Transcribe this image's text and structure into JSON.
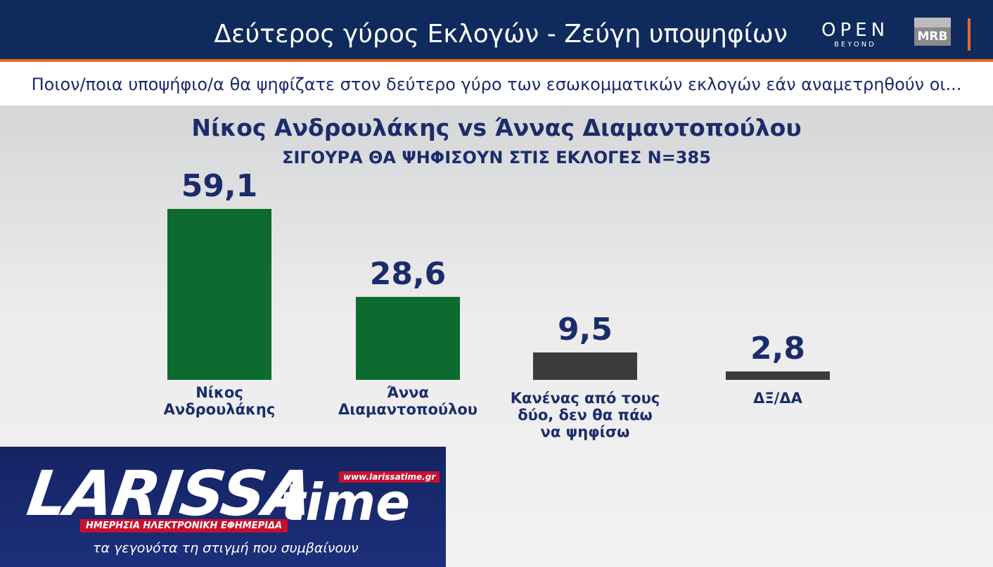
{
  "header": {
    "title": "Δεύτερος γύρος Εκλογών - Ζεύγη υποψηφίων",
    "logo_open": "OPEN",
    "logo_beyond": "BEYOND",
    "logo_mrb": "MRB"
  },
  "question": "Ποιον/ποια υποψήφιο/α θα ψηφίζατε στον δεύτερο γύρο των εσωκομματικών εκλογών εάν αναμετρηθούν οι...",
  "chart_data": {
    "type": "bar",
    "title": "Νίκος Ανδρουλάκης vs Άννας Διαμαντοπούλου",
    "subtitle": "ΣΙΓΟΥΡΑ ΘΑ ΨΗΦΙΣΟΥΝ ΣΤΙΣ ΕΚΛΟΓΕΣ N=385",
    "categories": [
      "Νίκος Ανδρουλάκης",
      "Άννα Διαμαντοπούλου",
      "Κανένας από τους δύο, δεν θα πάω να ψηφίσω",
      "ΔΞ/ΔΑ"
    ],
    "values": [
      59.1,
      28.6,
      9.5,
      2.8
    ],
    "value_labels": [
      "59,1",
      "28,6",
      "9,5",
      "2,8"
    ],
    "colors": [
      "#0d6b30",
      "#0d6b30",
      "#3b3b3b",
      "#3b3b3b"
    ]
  },
  "watermark": {
    "brand_main": "LARISSA",
    "brand_time": "time",
    "url": "www.larissatime.gr",
    "tagline": "ΗΜΕΡΗΣΙΑ ΗΛΕΚΤΡΟΝΙΚΗ ΕΦΗΜΕΡΙΔΑ",
    "slogan": "τα γεγονότα τη στιγμή που συμβαίνουν"
  }
}
